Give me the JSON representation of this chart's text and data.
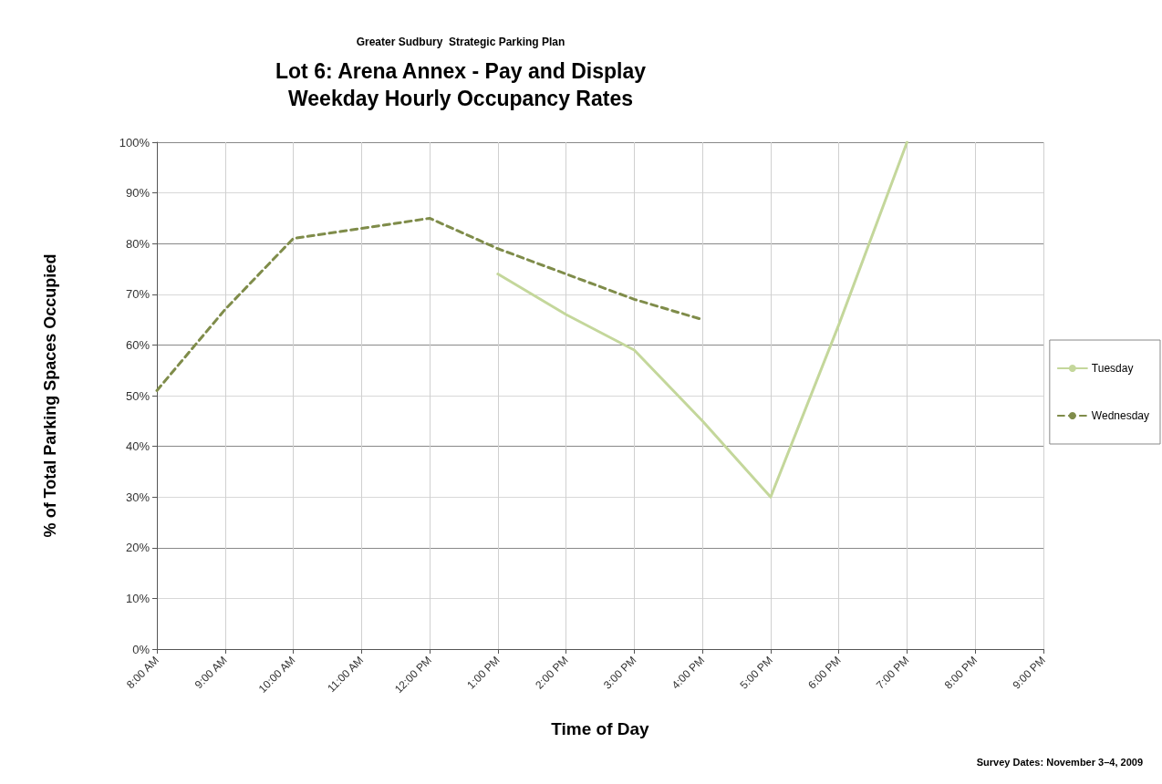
{
  "chart_data": {
    "type": "line",
    "subtitle": "Greater Sudbury  Strategic Parking Plan",
    "title": "Lot 6: Arena Annex - Pay and Display\nWeekday Hourly Occupancy Rates",
    "xlabel": "Time of Day",
    "ylabel": "% of Total Parking Spaces Occupied",
    "categories": [
      "8:00 AM",
      "9:00 AM",
      "10:00 AM",
      "11:00 AM",
      "12:00 PM",
      "1:00 PM",
      "2:00 PM",
      "3:00 PM",
      "4:00 PM",
      "5:00 PM",
      "6:00 PM",
      "7:00 PM",
      "8:00 PM",
      "9:00 PM"
    ],
    "series": [
      {
        "name": "Tuesday",
        "color": "#c4d79b",
        "line_style": "solid",
        "values": [
          null,
          null,
          null,
          null,
          null,
          74,
          66,
          59,
          45,
          30,
          64,
          100,
          null,
          null
        ]
      },
      {
        "name": "Wednesday",
        "color": "#7f8c4a",
        "line_style": "dashed",
        "values": [
          51,
          67,
          81,
          83,
          85,
          79,
          74,
          69,
          65,
          null,
          null,
          null,
          null,
          null
        ]
      }
    ],
    "ylim": [
      0,
      100
    ],
    "yticks": [
      {
        "value": 0,
        "label": "0%"
      },
      {
        "value": 10,
        "label": "10%"
      },
      {
        "value": 20,
        "label": "20%"
      },
      {
        "value": 30,
        "label": "30%"
      },
      {
        "value": 40,
        "label": "40%"
      },
      {
        "value": 50,
        "label": "50%"
      },
      {
        "value": 60,
        "label": "60%"
      },
      {
        "value": 70,
        "label": "70%"
      },
      {
        "value": 80,
        "label": "80%"
      },
      {
        "value": 90,
        "label": "90%"
      },
      {
        "value": 100,
        "label": "100%"
      }
    ],
    "grid": true,
    "legend": "right",
    "marker": "none",
    "annotations": [
      "Survey Dates: November 3–4, 2009"
    ]
  }
}
